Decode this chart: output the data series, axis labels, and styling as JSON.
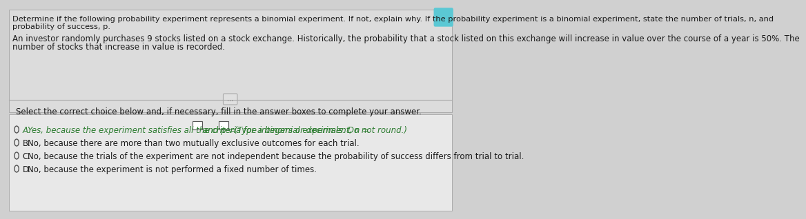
{
  "bg_color": "#d0d0d0",
  "panel_color": "#e8e8e8",
  "top_panel_color": "#dcdcdc",
  "bottom_panel_color": "#e8e8e8",
  "title_text": "Determine if the following probability experiment represents a binomial experiment. If not, explain why. If the probability experiment is a binomial experiment, state the number of trials, n, and\nprobability of success, p.",
  "scenario_text": "An investor randomly purchases 9 stocks listed on a stock exchange. Historically, the probability that a stock listed on this exchange will increase in value over the course of a year is 50%. The\nnumber of stocks that increase in value is recorded.",
  "instruction_text": "Select the correct choice below and, if necessary, fill in the answer boxes to complete your answer.",
  "option_A": "A.  Yes, because the experiment satisfies all the criteria for a binomial experiment, n =",
  "option_A_mid": " and p =",
  "option_A_end": ". (Type integers or decimals. Do not round.)",
  "option_B": "B.  No, because there are more than two mutually exclusive outcomes for each trial.",
  "option_C": "C.  No, because the trials of the experiment are not independent because the probability of success differs from trial to trial.",
  "option_D": "D.  No, because the experiment is not performed a fixed number of times.",
  "text_color": "#1a1a1a",
  "option_A_color": "#2e7d32",
  "divider_color": "#aaaaaa",
  "dots_color": "#555555",
  "box_fill": "#ffffff",
  "box_border": "#555555",
  "title_fontsize": 8.2,
  "body_fontsize": 8.5,
  "option_fontsize": 8.5
}
